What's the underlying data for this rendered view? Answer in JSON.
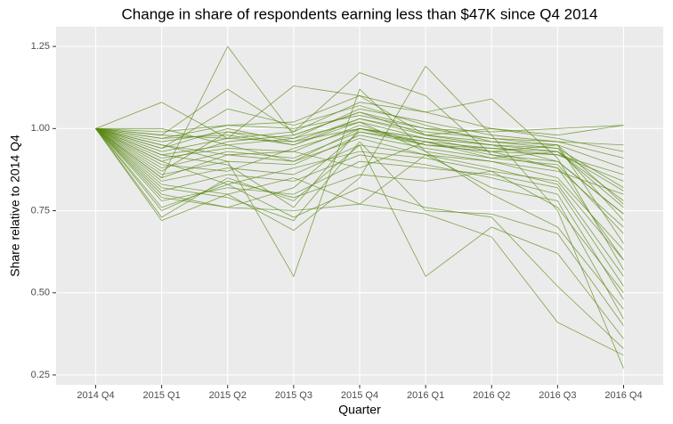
{
  "chart_data": {
    "type": "line",
    "title": "Change in share of respondents earning less than $47K since Q4 2014",
    "x_label": "Quarter",
    "y_label": "Share relative to 2014 Q4",
    "categories": [
      "2014 Q4",
      "2015 Q1",
      "2015 Q2",
      "2015 Q3",
      "2015 Q4",
      "2016 Q1",
      "2016 Q2",
      "2016 Q3",
      "2016 Q4"
    ],
    "ylim": [
      0.22,
      1.31
    ],
    "yticks": [
      0.25,
      {
        "value": 0.5,
        "label": "0.50"
      },
      0.75,
      {
        "value": 1,
        "label": "1.00"
      },
      1.25
    ],
    "grid": true,
    "series": [
      {
        "color": "#5a8a14",
        "values": [
          1,
          0.97,
          0.98,
          0.95,
          1.02,
          0.97,
          0.95,
          0.93,
          0.78
        ]
      },
      {
        "color": "#5a8a14",
        "values": [
          1,
          0.92,
          0.95,
          0.9,
          1.0,
          0.95,
          0.93,
          0.88,
          0.7
        ]
      },
      {
        "color": "#5a8a14",
        "values": [
          1,
          1.08,
          0.97,
          1.13,
          1.1,
          0.98,
          1.0,
          0.98,
          1.01
        ]
      },
      {
        "color": "#5a8a14",
        "values": [
          1,
          0.85,
          1.25,
          0.98,
          1.05,
          1.0,
          0.97,
          0.96,
          0.95
        ]
      },
      {
        "color": "#5a8a14",
        "values": [
          1,
          0.72,
          0.8,
          0.69,
          0.85,
          1.19,
          0.98,
          0.75,
          0.27
        ]
      },
      {
        "color": "#5a8a14",
        "values": [
          1,
          0.95,
          0.9,
          0.55,
          1.12,
          0.93,
          0.8,
          0.7,
          0.45
        ]
      },
      {
        "color": "#5a8a14",
        "values": [
          1,
          0.98,
          1.12,
          0.99,
          1.17,
          1.1,
          0.92,
          0.88,
          0.6
        ]
      },
      {
        "color": "#5a8a14",
        "values": [
          1,
          0.8,
          0.76,
          0.75,
          0.77,
          0.74,
          0.67,
          0.41,
          0.31
        ]
      },
      {
        "color": "#5a8a14",
        "values": [
          1,
          0.73,
          0.85,
          0.78,
          0.95,
          0.55,
          0.7,
          0.62,
          0.36
        ]
      },
      {
        "color": "#5a8a14",
        "values": [
          1,
          0.9,
          0.96,
          0.98,
          1.05,
          0.98,
          0.95,
          0.94,
          0.82
        ]
      },
      {
        "color": "#5a8a14",
        "values": [
          1,
          0.94,
          1.0,
          0.96,
          1.03,
          0.99,
          0.97,
          0.95,
          0.88
        ]
      },
      {
        "color": "#5a8a14",
        "values": [
          1,
          0.88,
          0.93,
          0.91,
          0.99,
          0.96,
          0.92,
          0.9,
          0.74
        ]
      },
      {
        "color": "#5a8a14",
        "values": [
          1,
          0.84,
          0.88,
          0.86,
          0.95,
          0.92,
          0.9,
          0.85,
          0.63
        ]
      },
      {
        "color": "#5a8a14",
        "values": [
          1,
          0.99,
          1.01,
          1.0,
          1.04,
          1.0,
          0.99,
          1.0,
          1.01
        ]
      },
      {
        "color": "#5a8a14",
        "values": [
          1,
          0.78,
          0.82,
          0.8,
          0.9,
          0.88,
          0.86,
          0.82,
          0.52
        ]
      },
      {
        "color": "#5a8a14",
        "values": [
          1,
          0.96,
          0.99,
          0.97,
          1.06,
          1.02,
          0.98,
          0.96,
          0.91
        ]
      },
      {
        "color": "#5a8a14",
        "values": [
          1,
          0.82,
          0.79,
          0.72,
          0.96,
          0.75,
          0.74,
          0.68,
          0.4
        ]
      },
      {
        "color": "#5a8a14",
        "values": [
          1,
          0.91,
          0.94,
          0.93,
          1.01,
          0.95,
          0.94,
          0.93,
          0.76
        ]
      },
      {
        "color": "#5a8a14",
        "values": [
          1,
          0.86,
          0.9,
          0.89,
          0.98,
          0.94,
          0.91,
          0.89,
          0.68
        ]
      },
      {
        "color": "#5a8a14",
        "values": [
          1,
          0.93,
          0.97,
          0.99,
          1.08,
          1.05,
          1.09,
          0.91,
          0.57
        ]
      },
      {
        "color": "#5a8a14",
        "values": [
          1,
          0.76,
          0.83,
          0.73,
          0.82,
          0.76,
          0.73,
          0.52,
          0.33
        ]
      },
      {
        "color": "#5a8a14",
        "values": [
          1,
          1.0,
          0.95,
          0.97,
          1.02,
          0.93,
          0.9,
          0.87,
          0.8
        ]
      },
      {
        "color": "#5a8a14",
        "values": [
          1,
          0.89,
          0.87,
          0.94,
          1.0,
          0.97,
          0.93,
          0.92,
          0.84
        ]
      },
      {
        "color": "#5a8a14",
        "values": [
          1,
          0.95,
          0.92,
          0.9,
          0.97,
          0.92,
          0.88,
          0.83,
          0.55
        ]
      },
      {
        "color": "#5a8a14",
        "values": [
          1,
          0.81,
          0.86,
          0.84,
          0.92,
          0.89,
          0.85,
          0.8,
          0.48
        ]
      },
      {
        "color": "#5a8a14",
        "values": [
          1,
          0.97,
          1.01,
          1.02,
          1.1,
          1.05,
          1.0,
          0.97,
          0.93
        ]
      },
      {
        "color": "#5a8a14",
        "values": [
          1,
          0.87,
          0.99,
          0.95,
          1.03,
          0.98,
          0.96,
          0.94,
          0.72
        ]
      },
      {
        "color": "#5a8a14",
        "values": [
          1,
          0.83,
          0.8,
          0.85,
          0.77,
          0.92,
          0.82,
          0.78,
          0.42
        ]
      },
      {
        "color": "#5a8a14",
        "values": [
          1,
          0.98,
          0.97,
          0.96,
          1.0,
          0.96,
          0.94,
          0.92,
          0.86
        ]
      },
      {
        "color": "#5a8a14",
        "values": [
          1,
          0.9,
          0.83,
          0.88,
          0.93,
          0.91,
          0.87,
          0.84,
          0.6
        ]
      },
      {
        "color": "#5a8a14",
        "values": [
          1,
          0.79,
          0.76,
          0.82,
          0.99,
          0.95,
          0.93,
          0.95,
          0.77
        ]
      },
      {
        "color": "#5a8a14",
        "values": [
          1,
          0.94,
          1.06,
          1.01,
          1.07,
          1.01,
          0.96,
          0.95,
          0.65
        ]
      },
      {
        "color": "#5a8a14",
        "values": [
          1,
          0.85,
          0.92,
          0.93,
          0.88,
          0.96,
          0.91,
          0.93,
          0.81
        ]
      },
      {
        "color": "#5a8a14",
        "values": [
          1,
          0.92,
          0.89,
          0.76,
          1.0,
          0.97,
          0.95,
          0.9,
          0.74
        ]
      },
      {
        "color": "#5a8a14",
        "values": [
          1,
          0.75,
          0.84,
          0.79,
          0.86,
          0.84,
          0.87,
          0.76,
          0.5
        ]
      }
    ]
  }
}
